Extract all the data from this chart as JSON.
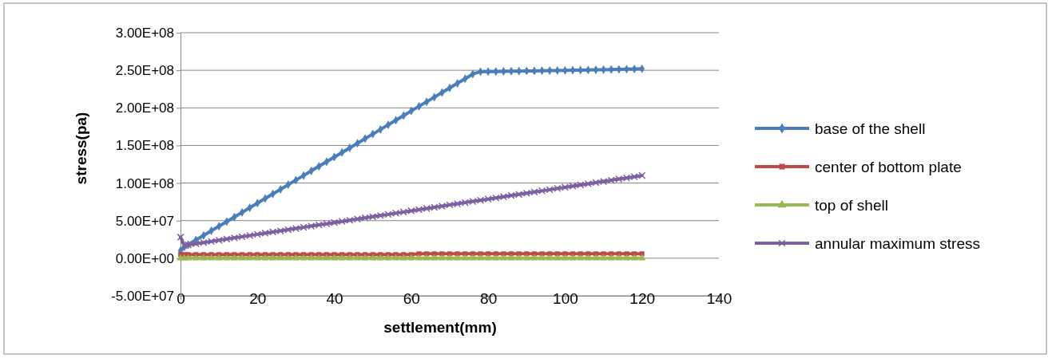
{
  "chart_data": {
    "type": "line",
    "xlabel": "settlement(mm)",
    "ylabel": "stress(pa)",
    "x": [
      0,
      1,
      2,
      4,
      6,
      8,
      10,
      12,
      14,
      16,
      18,
      20,
      22,
      24,
      26,
      28,
      30,
      32,
      34,
      36,
      38,
      40,
      42,
      44,
      46,
      48,
      50,
      52,
      54,
      56,
      58,
      60,
      62,
      64,
      66,
      68,
      70,
      72,
      74,
      76,
      78,
      80,
      82,
      84,
      86,
      88,
      90,
      92,
      94,
      96,
      98,
      100,
      102,
      104,
      106,
      108,
      110,
      112,
      114,
      116,
      118,
      120
    ],
    "xlim": [
      0,
      140
    ],
    "xticks": [
      0,
      20,
      40,
      60,
      80,
      100,
      120,
      140
    ],
    "ylim": [
      -50000000,
      300000000
    ],
    "yticks": [
      {
        "value": -50000000,
        "label": "-5.00E+07"
      },
      {
        "value": 0,
        "label": "0.00E+00"
      },
      {
        "value": 50000000,
        "label": "5.00E+07"
      },
      {
        "value": 100000000,
        "label": "1.00E+08"
      },
      {
        "value": 150000000,
        "label": "1.50E+08"
      },
      {
        "value": 200000000,
        "label": "2.00E+08"
      },
      {
        "value": 250000000,
        "label": "2.50E+08"
      },
      {
        "value": 300000000,
        "label": "3.00E+08"
      }
    ],
    "grid": "y",
    "legend": "right",
    "line_style": "solid",
    "series": [
      {
        "name": "base of the shell",
        "color": "#4a7ebb",
        "marker": "diamond",
        "values": [
          10000000,
          15000000,
          18100000,
          24200000,
          30300000,
          36500000,
          42600000,
          48700000,
          54800000,
          61000000,
          67100000,
          73300000,
          79400000,
          85500000,
          91600000,
          97800000,
          103900000,
          110000000,
          116200000,
          122300000,
          128400000,
          134600000,
          140700000,
          146800000,
          152900000,
          159100000,
          165200000,
          171300000,
          177500000,
          183600000,
          189700000,
          195900000,
          202000000,
          208100000,
          214200000,
          220400000,
          226500000,
          232600000,
          238800000,
          244900000,
          248100000,
          248300000,
          248400000,
          248600000,
          248800000,
          248900000,
          249100000,
          249200000,
          249400000,
          249600000,
          249700000,
          249900000,
          250100000,
          250200000,
          250400000,
          250600000,
          250800000,
          251000000,
          251200000,
          251500000,
          251700000,
          252000000
        ]
      },
      {
        "name": "center of bottom plate",
        "color": "#be4b48",
        "marker": "square",
        "values": [
          5000000,
          5000000,
          5000000,
          5000000,
          5000000,
          5000000,
          5000000,
          5000000,
          5000000,
          5000000,
          5000000,
          5000000,
          5000000,
          5000000,
          5000000,
          5000000,
          5000000,
          5000000,
          5000000,
          5000000,
          5000000,
          5000000,
          5000000,
          5000000,
          5000000,
          5000000,
          5000000,
          5000000,
          5000000,
          5000000,
          5000000,
          5000000,
          6000000,
          6000000,
          6000000,
          6000000,
          6000000,
          6000000,
          6000000,
          6000000,
          6000000,
          6000000,
          6000000,
          6000000,
          6000000,
          6000000,
          6000000,
          6000000,
          6000000,
          6000000,
          6000000,
          6000000,
          6000000,
          6000000,
          6000000,
          6000000,
          6000000,
          6000000,
          6000000,
          6000000,
          6000000,
          6000000
        ]
      },
      {
        "name": "top of shell",
        "color": "#98b954",
        "marker": "triangle",
        "values": [
          0,
          0,
          0,
          0,
          0,
          0,
          0,
          0,
          0,
          0,
          0,
          0,
          0,
          0,
          0,
          0,
          0,
          0,
          0,
          0,
          0,
          0,
          0,
          0,
          0,
          0,
          0,
          0,
          0,
          0,
          0,
          0,
          0,
          0,
          0,
          0,
          0,
          0,
          0,
          0,
          0,
          0,
          0,
          0,
          0,
          0,
          0,
          0,
          0,
          0,
          0,
          0,
          0,
          0,
          0,
          0,
          0,
          0,
          0,
          0,
          0,
          0
        ]
      },
      {
        "name": "annular maximum stress",
        "color": "#7d60a0",
        "marker": "cross",
        "values": [
          28000000,
          16900000,
          17700000,
          19200000,
          20800000,
          22400000,
          23900000,
          25500000,
          27100000,
          28600000,
          30200000,
          31800000,
          33300000,
          34900000,
          36400000,
          38000000,
          39600000,
          41100000,
          42700000,
          44300000,
          45800000,
          47400000,
          49000000,
          50500000,
          52100000,
          53700000,
          55200000,
          56800000,
          58300000,
          59900000,
          61500000,
          63000000,
          64600000,
          66200000,
          67700000,
          69300000,
          70900000,
          72400000,
          74000000,
          75600000,
          77100000,
          78700000,
          80200000,
          81800000,
          83400000,
          84900000,
          86500000,
          88100000,
          89600000,
          91200000,
          92800000,
          94300000,
          95900000,
          97500000,
          99000000,
          100600000,
          102100000,
          103700000,
          105300000,
          106800000,
          108400000,
          110000000
        ]
      }
    ]
  }
}
